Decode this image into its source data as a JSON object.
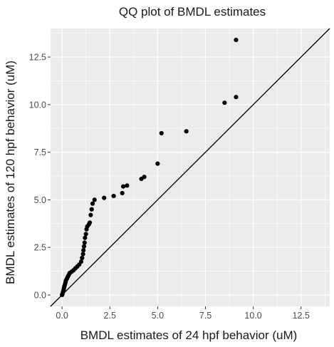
{
  "chart_data": {
    "type": "scatter",
    "title": "QQ plot of BMDL estimates",
    "xlabel": "BMDL estimates of 24 hpf behavior (uM)",
    "ylabel": "BMDL estimates of 120 hpf behavior (uM)",
    "xlim": [
      -0.6,
      14.0
    ],
    "ylim": [
      -0.6,
      14.0
    ],
    "xticks": [
      0.0,
      2.5,
      5.0,
      7.5,
      10.0,
      12.5
    ],
    "yticks": [
      0.0,
      2.5,
      5.0,
      7.5,
      10.0,
      12.5
    ],
    "xtick_labels": [
      "0.0",
      "2.5",
      "5.0",
      "7.5",
      "10.0",
      "12.5"
    ],
    "ytick_labels": [
      "0.0",
      "2.5",
      "5.0",
      "7.5",
      "10.0",
      "12.5"
    ],
    "grid": true,
    "reference_line": {
      "slope": 1,
      "intercept": 0
    },
    "colors": {
      "panel": "#ebebeb",
      "grid": "#ffffff",
      "point": "#000000",
      "line": "#000000"
    },
    "points": [
      [
        0.0,
        0.0
      ],
      [
        0.02,
        0.05
      ],
      [
        0.05,
        0.15
      ],
      [
        0.08,
        0.25
      ],
      [
        0.1,
        0.35
      ],
      [
        0.12,
        0.45
      ],
      [
        0.15,
        0.55
      ],
      [
        0.18,
        0.65
      ],
      [
        0.2,
        0.75
      ],
      [
        0.25,
        0.85
      ],
      [
        0.3,
        0.95
      ],
      [
        0.35,
        1.05
      ],
      [
        0.4,
        1.15
      ],
      [
        0.5,
        1.22
      ],
      [
        0.6,
        1.3
      ],
      [
        0.7,
        1.4
      ],
      [
        0.8,
        1.5
      ],
      [
        0.9,
        1.6
      ],
      [
        1.0,
        1.75
      ],
      [
        1.05,
        1.95
      ],
      [
        1.1,
        2.15
      ],
      [
        1.12,
        2.35
      ],
      [
        1.15,
        2.55
      ],
      [
        1.18,
        2.75
      ],
      [
        1.2,
        3.0
      ],
      [
        1.25,
        3.2
      ],
      [
        1.28,
        3.45
      ],
      [
        1.32,
        3.6
      ],
      [
        1.4,
        3.7
      ],
      [
        1.45,
        3.8
      ],
      [
        1.5,
        4.2
      ],
      [
        1.55,
        4.5
      ],
      [
        1.6,
        4.8
      ],
      [
        1.7,
        5.0
      ],
      [
        2.2,
        5.1
      ],
      [
        2.7,
        5.2
      ],
      [
        3.15,
        5.35
      ],
      [
        3.2,
        5.7
      ],
      [
        3.4,
        5.75
      ],
      [
        4.15,
        6.1
      ],
      [
        4.3,
        6.2
      ],
      [
        5.0,
        6.9
      ],
      [
        5.2,
        8.5
      ],
      [
        6.5,
        8.6
      ],
      [
        8.5,
        10.1
      ],
      [
        9.1,
        10.4
      ],
      [
        9.1,
        13.4
      ]
    ]
  }
}
